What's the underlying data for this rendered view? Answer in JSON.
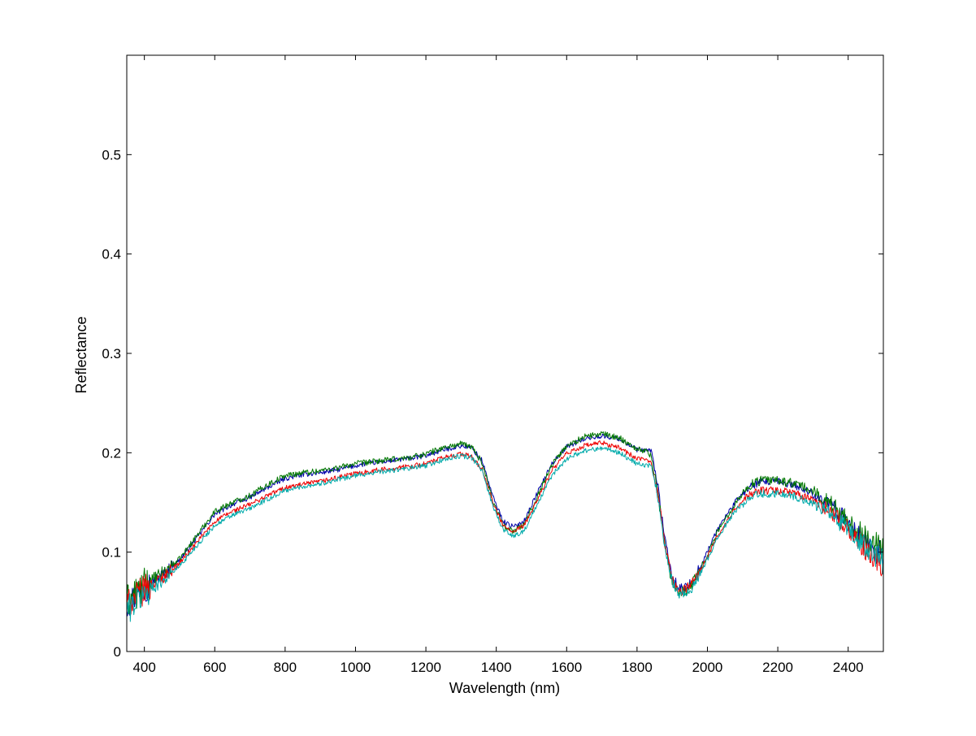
{
  "chart_data": {
    "type": "line",
    "title": "",
    "xlabel": "Wavelength (nm)",
    "ylabel": "Reflectance",
    "xlim": [
      350,
      2500
    ],
    "ylim": [
      0,
      0.6
    ],
    "xticks": [
      400,
      600,
      800,
      1000,
      1200,
      1400,
      1600,
      1800,
      2000,
      2200,
      2400
    ],
    "yticks": [
      0,
      0.1,
      0.2,
      0.3,
      0.4,
      0.5
    ],
    "xtick_labels": [
      "400",
      "600",
      "800",
      "1000",
      "1200",
      "1400",
      "1600",
      "1800",
      "2000",
      "2200",
      "2400"
    ],
    "ytick_labels": [
      "0",
      "0.1",
      "0.2",
      "0.3",
      "0.4",
      "0.5"
    ],
    "grid": false,
    "legend": "none",
    "x": [
      350,
      400,
      450,
      500,
      550,
      600,
      650,
      700,
      750,
      800,
      850,
      900,
      950,
      1000,
      1050,
      1100,
      1150,
      1200,
      1250,
      1300,
      1330,
      1360,
      1390,
      1420,
      1450,
      1480,
      1520,
      1560,
      1600,
      1650,
      1700,
      1750,
      1800,
      1830,
      1840,
      1860,
      1880,
      1900,
      1920,
      1940,
      1960,
      1990,
      2030,
      2080,
      2120,
      2150,
      2200,
      2250,
      2300,
      2350,
      2400,
      2450,
      2500
    ],
    "series": [
      {
        "color": "#0000aa",
        "noise": 0.0025,
        "values": [
          0.048,
          0.064,
          0.077,
          0.092,
          0.115,
          0.138,
          0.148,
          0.155,
          0.165,
          0.174,
          0.178,
          0.18,
          0.183,
          0.187,
          0.19,
          0.192,
          0.194,
          0.197,
          0.203,
          0.207,
          0.205,
          0.192,
          0.156,
          0.131,
          0.125,
          0.132,
          0.162,
          0.19,
          0.206,
          0.214,
          0.217,
          0.214,
          0.203,
          0.202,
          0.203,
          0.165,
          0.11,
          0.075,
          0.063,
          0.064,
          0.072,
          0.093,
          0.124,
          0.151,
          0.166,
          0.17,
          0.171,
          0.167,
          0.159,
          0.147,
          0.13,
          0.11,
          0.095
        ]
      },
      {
        "color": "#007700",
        "noise": 0.003,
        "values": [
          0.05,
          0.066,
          0.078,
          0.093,
          0.117,
          0.141,
          0.15,
          0.157,
          0.168,
          0.177,
          0.18,
          0.182,
          0.185,
          0.189,
          0.191,
          0.193,
          0.195,
          0.199,
          0.205,
          0.209,
          0.206,
          0.19,
          0.152,
          0.127,
          0.121,
          0.128,
          0.159,
          0.189,
          0.207,
          0.216,
          0.219,
          0.215,
          0.204,
          0.201,
          0.197,
          0.158,
          0.104,
          0.07,
          0.06,
          0.062,
          0.07,
          0.09,
          0.121,
          0.15,
          0.167,
          0.172,
          0.172,
          0.169,
          0.161,
          0.149,
          0.132,
          0.112,
          0.1
        ]
      },
      {
        "color": "#ee0000",
        "noise": 0.0025,
        "values": [
          0.047,
          0.062,
          0.074,
          0.089,
          0.11,
          0.131,
          0.141,
          0.148,
          0.157,
          0.165,
          0.168,
          0.171,
          0.175,
          0.179,
          0.182,
          0.184,
          0.186,
          0.189,
          0.195,
          0.199,
          0.196,
          0.183,
          0.15,
          0.126,
          0.12,
          0.127,
          0.155,
          0.183,
          0.199,
          0.207,
          0.21,
          0.205,
          0.194,
          0.192,
          0.191,
          0.157,
          0.106,
          0.072,
          0.061,
          0.063,
          0.07,
          0.088,
          0.117,
          0.144,
          0.158,
          0.162,
          0.162,
          0.159,
          0.152,
          0.141,
          0.124,
          0.103,
          0.088
        ]
      },
      {
        "color": "#00aaaa",
        "noise": 0.0025,
        "values": [
          0.042,
          0.058,
          0.071,
          0.086,
          0.107,
          0.127,
          0.137,
          0.144,
          0.153,
          0.162,
          0.166,
          0.169,
          0.173,
          0.177,
          0.18,
          0.182,
          0.184,
          0.187,
          0.193,
          0.197,
          0.195,
          0.182,
          0.147,
          0.122,
          0.116,
          0.122,
          0.15,
          0.178,
          0.194,
          0.202,
          0.205,
          0.2,
          0.189,
          0.187,
          0.188,
          0.154,
          0.104,
          0.07,
          0.058,
          0.058,
          0.066,
          0.085,
          0.115,
          0.142,
          0.155,
          0.159,
          0.159,
          0.156,
          0.149,
          0.138,
          0.122,
          0.104,
          0.09
        ]
      }
    ]
  }
}
